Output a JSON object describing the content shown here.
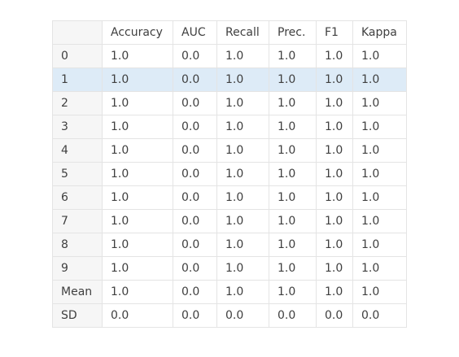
{
  "table": {
    "columns": [
      "Accuracy",
      "AUC",
      "Recall",
      "Prec.",
      "F1",
      "Kappa"
    ],
    "rows": [
      {
        "label": "0",
        "values": [
          "1.0",
          "0.0",
          "1.0",
          "1.0",
          "1.0",
          "1.0"
        ]
      },
      {
        "label": "1",
        "values": [
          "1.0",
          "0.0",
          "1.0",
          "1.0",
          "1.0",
          "1.0"
        ]
      },
      {
        "label": "2",
        "values": [
          "1.0",
          "0.0",
          "1.0",
          "1.0",
          "1.0",
          "1.0"
        ]
      },
      {
        "label": "3",
        "values": [
          "1.0",
          "0.0",
          "1.0",
          "1.0",
          "1.0",
          "1.0"
        ]
      },
      {
        "label": "4",
        "values": [
          "1.0",
          "0.0",
          "1.0",
          "1.0",
          "1.0",
          "1.0"
        ]
      },
      {
        "label": "5",
        "values": [
          "1.0",
          "0.0",
          "1.0",
          "1.0",
          "1.0",
          "1.0"
        ]
      },
      {
        "label": "6",
        "values": [
          "1.0",
          "0.0",
          "1.0",
          "1.0",
          "1.0",
          "1.0"
        ]
      },
      {
        "label": "7",
        "values": [
          "1.0",
          "0.0",
          "1.0",
          "1.0",
          "1.0",
          "1.0"
        ]
      },
      {
        "label": "8",
        "values": [
          "1.0",
          "0.0",
          "1.0",
          "1.0",
          "1.0",
          "1.0"
        ]
      },
      {
        "label": "9",
        "values": [
          "1.0",
          "0.0",
          "1.0",
          "1.0",
          "1.0",
          "1.0"
        ]
      },
      {
        "label": "Mean",
        "values": [
          "1.0",
          "0.0",
          "1.0",
          "1.0",
          "1.0",
          "1.0"
        ]
      },
      {
        "label": "SD",
        "values": [
          "0.0",
          "0.0",
          "0.0",
          "0.0",
          "0.0",
          "0.0"
        ]
      }
    ],
    "highlighted_row_index": 1,
    "colors": {
      "highlight": "#ddebf7",
      "index_background": "#f6f6f6",
      "border": "#e4e4e4",
      "text": "#3f3f3f"
    }
  }
}
